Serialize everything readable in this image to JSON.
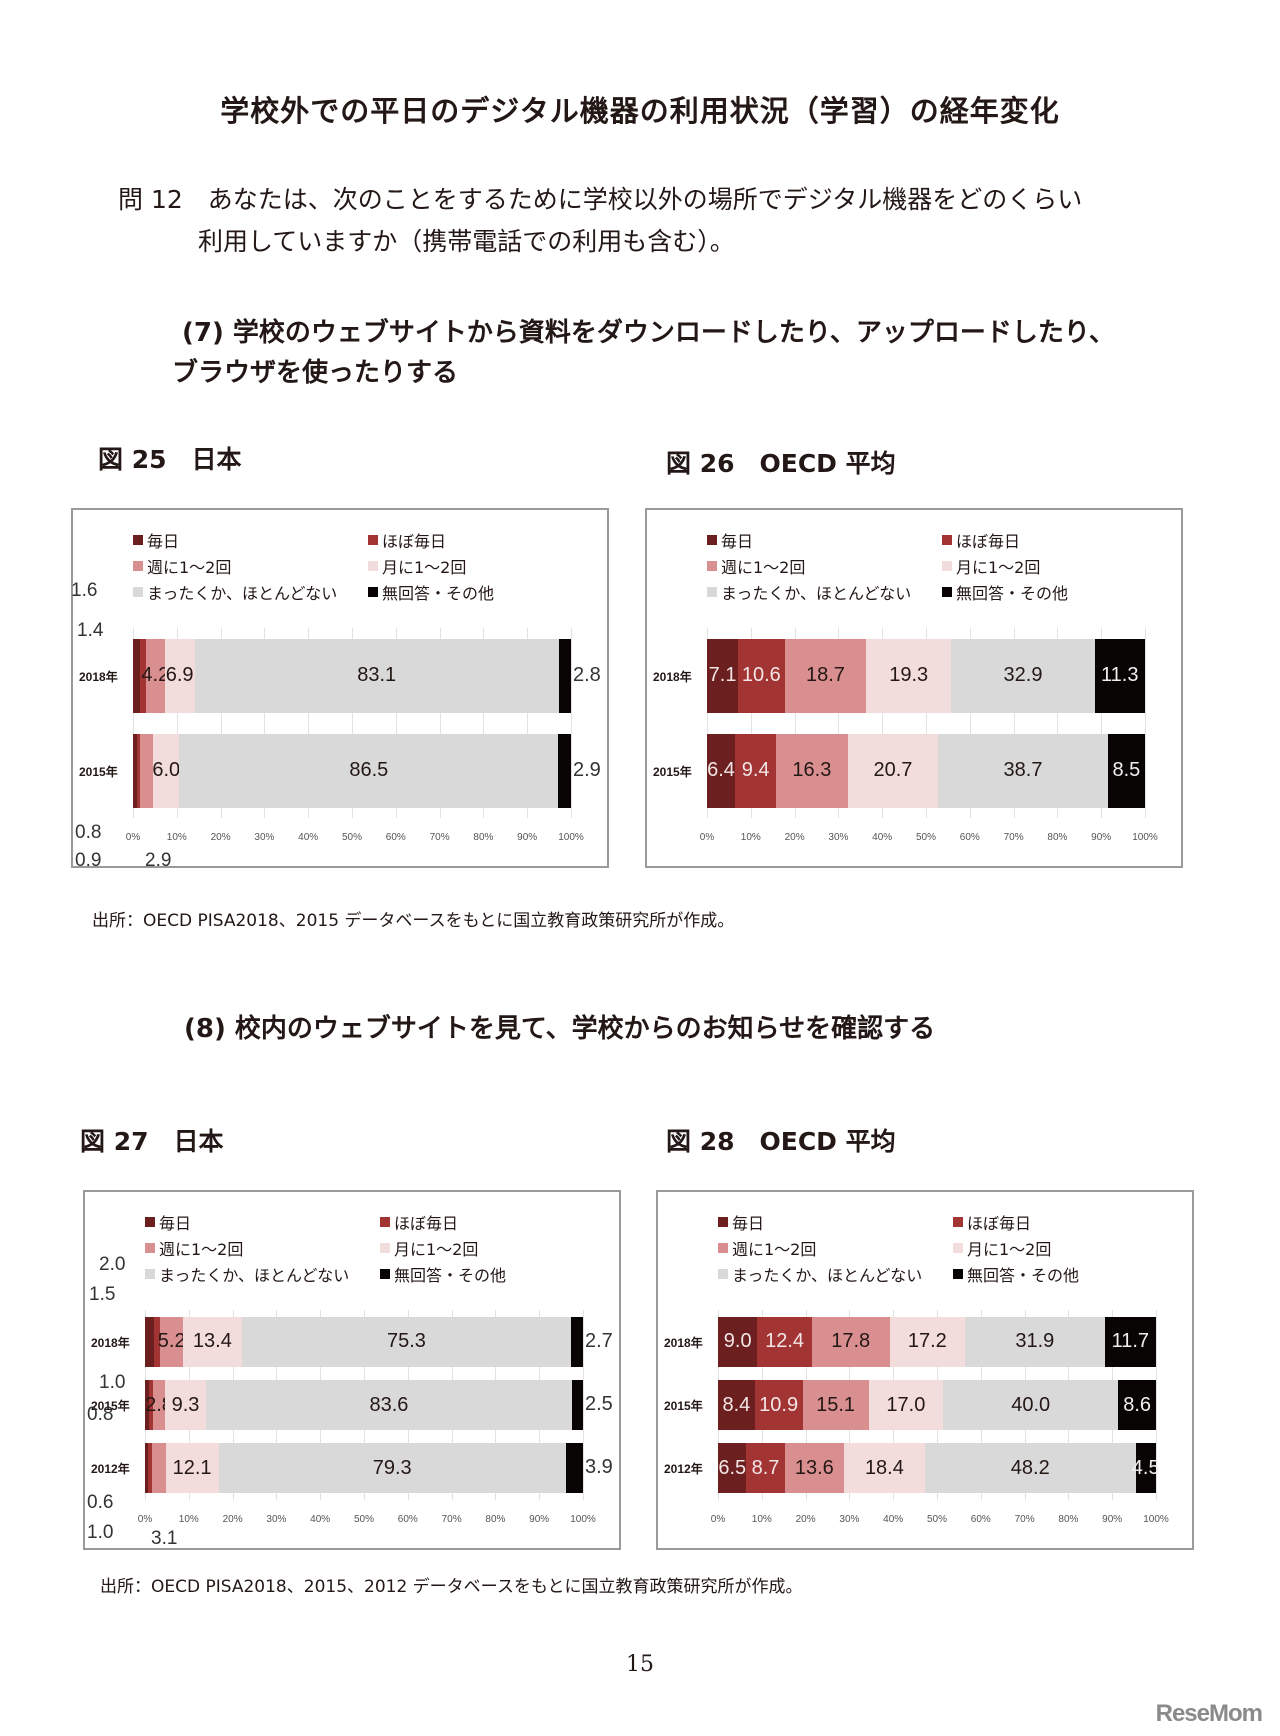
{
  "page": {
    "title": "学校外での平日のデジタル機器の利用状況（学習）の経年変化",
    "question_line1": "問 12　あなたは、次のことをするために学校以外の場所でデジタル機器をどのくらい",
    "question_line2": "利用していますか（携帯電話での利用も含む）。",
    "section7_line1": "(7) 学校のウェブサイトから資料をダウンロードしたり、アップロードしたり、",
    "section7_line2": "ブラウザを使ったりする",
    "section8": "(8) 校内のウェブサイトを見て、学校からのお知らせを確認する",
    "source1": "出所：OECD PISA2018、2015 データベースをもとに国立教育政策研究所が作成。",
    "source2": "出所：OECD PISA2018、2015、2012 データベースをもとに国立教育政策研究所が作成。",
    "page_number": "15",
    "logo": "ReseMom"
  },
  "legend": {
    "items": [
      "毎日",
      "ほぼ毎日",
      "週に1～2回",
      "月に1～2回",
      "まったくか、ほとんどない",
      "無回答・その他"
    ],
    "colors": [
      "#6b1f1f",
      "#a33434",
      "#d98f8f",
      "#f2dcdc",
      "#d9d9d9",
      "#080404"
    ]
  },
  "figures": {
    "fig25": {
      "label": "図 25　日本"
    },
    "fig26": {
      "label": "図 26　OECD 平均"
    },
    "fig27": {
      "label": "図 27　日本"
    },
    "fig28": {
      "label": "図 28　OECD 平均"
    }
  },
  "axis": {
    "ticks": [
      "0%",
      "10%",
      "20%",
      "30%",
      "40%",
      "50%",
      "60%",
      "70%",
      "80%",
      "90%",
      "100%"
    ]
  },
  "chart_data": [
    {
      "id": "fig25",
      "type": "bar",
      "stacked": true,
      "orientation": "horizontal",
      "title": "図 25 日本",
      "categories": [
        "2018年",
        "2015年"
      ],
      "series": [
        {
          "name": "毎日",
          "values": [
            1.6,
            0.8
          ]
        },
        {
          "name": "ほぼ毎日",
          "values": [
            1.4,
            0.9
          ]
        },
        {
          "name": "週に1～2回",
          "values": [
            4.2,
            2.9
          ]
        },
        {
          "name": "月に1～2回",
          "values": [
            6.9,
            6.0
          ]
        },
        {
          "name": "まったくか、ほとんどない",
          "values": [
            83.1,
            86.5
          ]
        },
        {
          "name": "無回答・その他",
          "values": [
            2.8,
            2.9
          ]
        }
      ],
      "xlim": [
        0,
        100
      ],
      "xlabel": "",
      "ylabel": "",
      "legend_position": "top",
      "grid": true
    },
    {
      "id": "fig26",
      "type": "bar",
      "stacked": true,
      "orientation": "horizontal",
      "title": "図 26 OECD 平均",
      "categories": [
        "2018年",
        "2015年"
      ],
      "series": [
        {
          "name": "毎日",
          "values": [
            7.1,
            6.4
          ]
        },
        {
          "name": "ほぼ毎日",
          "values": [
            10.6,
            9.4
          ]
        },
        {
          "name": "週に1～2回",
          "values": [
            18.7,
            16.3
          ]
        },
        {
          "name": "月に1～2回",
          "values": [
            19.3,
            20.7
          ]
        },
        {
          "name": "まったくか、ほとんどない",
          "values": [
            32.9,
            38.7
          ]
        },
        {
          "name": "無回答・その他",
          "values": [
            11.3,
            8.5
          ]
        }
      ],
      "xlim": [
        0,
        100
      ],
      "xlabel": "",
      "ylabel": "",
      "legend_position": "top",
      "grid": true
    },
    {
      "id": "fig27",
      "type": "bar",
      "stacked": true,
      "orientation": "horizontal",
      "title": "図 27 日本",
      "categories": [
        "2018年",
        "2015年",
        "2012年"
      ],
      "series": [
        {
          "name": "毎日",
          "values": [
            2.0,
            1.0,
            0.6
          ]
        },
        {
          "name": "ほぼ毎日",
          "values": [
            1.5,
            0.8,
            1.0
          ]
        },
        {
          "name": "週に1～2回",
          "values": [
            5.2,
            2.8,
            3.1
          ]
        },
        {
          "name": "月に1～2回",
          "values": [
            13.4,
            9.3,
            12.1
          ]
        },
        {
          "name": "まったくか、ほとんどない",
          "values": [
            75.3,
            83.6,
            79.3
          ]
        },
        {
          "name": "無回答・その他",
          "values": [
            2.7,
            2.5,
            3.9
          ]
        }
      ],
      "xlim": [
        0,
        100
      ],
      "xlabel": "",
      "ylabel": "",
      "legend_position": "top",
      "grid": true
    },
    {
      "id": "fig28",
      "type": "bar",
      "stacked": true,
      "orientation": "horizontal",
      "title": "図 28 OECD 平均",
      "categories": [
        "2018年",
        "2015年",
        "2012年"
      ],
      "series": [
        {
          "name": "毎日",
          "values": [
            9.0,
            8.4,
            6.5
          ]
        },
        {
          "name": "ほぼ毎日",
          "values": [
            12.4,
            10.9,
            8.7
          ]
        },
        {
          "name": "週に1～2回",
          "values": [
            17.8,
            15.1,
            13.6
          ]
        },
        {
          "name": "月に1～2回",
          "values": [
            17.2,
            17.0,
            18.4
          ]
        },
        {
          "name": "まったくか、ほとんどない",
          "values": [
            31.9,
            40.0,
            48.2
          ]
        },
        {
          "name": "無回答・その他",
          "values": [
            11.7,
            8.6,
            4.5
          ]
        }
      ],
      "xlim": [
        0,
        100
      ],
      "xlabel": "",
      "ylabel": "",
      "legend_position": "top",
      "grid": true
    }
  ]
}
